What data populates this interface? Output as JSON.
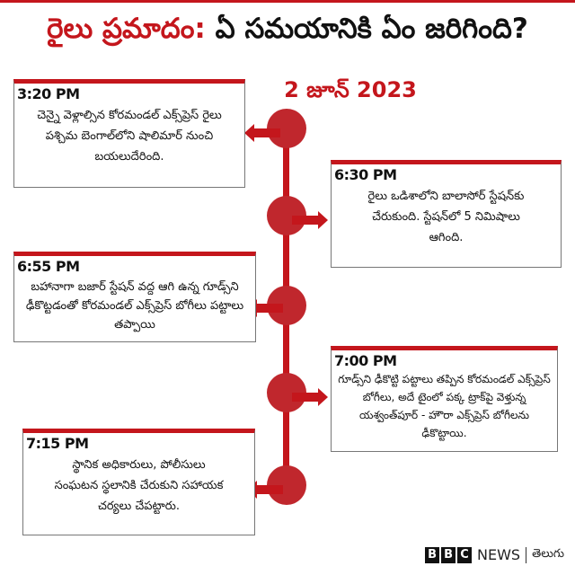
{
  "title": {
    "highlight": "రైలు ప్రమాదం:",
    "rest": " ఏ సమయానికి ఏం జరిగింది?"
  },
  "date": "2 జూన్ 2023",
  "colors": {
    "accent": "#c4161c",
    "text": "#111111"
  },
  "events": [
    {
      "time": "3:20 PM",
      "text": "చెన్నై వెళ్లాల్సిన కోరమండల్ ఎక్స్‌ప్రెస్ రైలు పశ్చిమ బెంగాల్‌లోని షాలిమార్ నుంచి బయలుదేరింది.",
      "side": "left"
    },
    {
      "time": "6:30 PM",
      "text": "రైలు ఒడిశాలోని బాలాసోర్ స్టేషన్‌కు చేరుకుంది. స్టేషన్‌లో 5 నిమిషాలు ఆగింది.",
      "side": "right"
    },
    {
      "time": "6:55 PM",
      "text": "బహానాగా బజార్ స్టేషన్ వద్ద ఆగి ఉన్న గూడ్స్‌ని ఢీకొట్టడంతో కోరమండల్ ఎక్స్‌ప్రెస్ బోగీలు పట్టాలు తప్పాయి",
      "side": "left"
    },
    {
      "time": "7:00 PM",
      "text": "గూడ్స్‌ని ఢీకొట్టి పట్టాలు తప్పిన కోరమండల్ ఎక్స్‌ప్రెస్ బోగీలు, అదే టైంలో పక్క ట్రాక్‌పై వెళ్తున్న యశ్వంత్‌పూర్ - హౌరా ఎక్స్‌ప్రెస్ బోగీలను ఢీకొట్టాయి.",
      "side": "right"
    },
    {
      "time": "7:15 PM",
      "text": "స్థానిక అధికారులు, పోలీసులు సంఘటన స్థలానికి చేరుకుని సహాయక చర్యలు చేపట్టారు.",
      "side": "left"
    }
  ],
  "footer": {
    "logo": [
      "B",
      "B",
      "C"
    ],
    "news": "NEWS",
    "language": "తెలుగు"
  }
}
